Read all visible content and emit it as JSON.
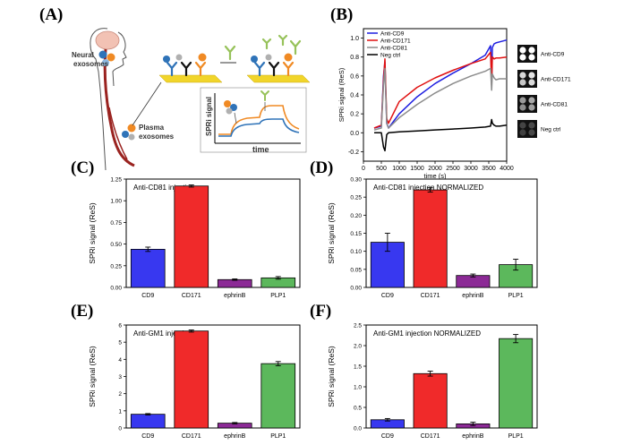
{
  "panels": {
    "a": {
      "letter": "(A)"
    },
    "b": {
      "letter": "(B)"
    },
    "c": {
      "letter": "(C)"
    },
    "d": {
      "letter": "(D)"
    },
    "e": {
      "letter": "(E)"
    },
    "f": {
      "letter": "(F)"
    }
  },
  "schematic": {
    "neural_label": "Neural\nexosomes",
    "plasma_label": "Plasma\nexosomes",
    "inset_ylabel": "SPRi signal",
    "inset_xlabel": "time",
    "colors": {
      "orange": "#f08a24",
      "blue": "#2f73b8",
      "yellow": "#f1d52a",
      "green": "#97c25a",
      "artery": "#9a2320"
    }
  },
  "spots": [
    "Anti-CD9",
    "Anti-CD171",
    "Anti-CD81",
    "Neg ctrl"
  ],
  "chart_data": [
    {
      "id": "B",
      "type": "line",
      "title": "",
      "xlabel": "time (s)",
      "ylabel": "SPRi signal (ReS)",
      "xlim": [
        0,
        4000
      ],
      "ylim": [
        -0.3,
        1.1
      ],
      "xticks": [
        0,
        500,
        1000,
        1500,
        2000,
        2500,
        3000,
        3500,
        4000
      ],
      "yticks": [
        -0.2,
        0.0,
        0.2,
        0.4,
        0.6,
        0.8,
        1.0
      ],
      "legend": "top-left",
      "series": [
        {
          "name": "Anti-CD9",
          "color": "#1f1fe0",
          "x": [
            300,
            500,
            560,
            600,
            650,
            700,
            1000,
            1500,
            2000,
            2500,
            3000,
            3400,
            3550,
            3580,
            3600,
            3650,
            3700,
            3800,
            4000
          ],
          "y": [
            0.05,
            0.07,
            0.6,
            0.75,
            0.1,
            0.05,
            0.2,
            0.38,
            0.52,
            0.63,
            0.73,
            0.82,
            0.92,
            0.55,
            0.9,
            0.94,
            0.95,
            0.96,
            0.98
          ]
        },
        {
          "name": "Anti-CD171",
          "color": "#e01010",
          "x": [
            300,
            500,
            560,
            600,
            650,
            700,
            1000,
            1500,
            2000,
            2500,
            3000,
            3400,
            3550,
            3580,
            3600,
            3650,
            3700,
            3800,
            4000
          ],
          "y": [
            0.05,
            0.08,
            0.55,
            0.78,
            0.15,
            0.1,
            0.33,
            0.48,
            0.58,
            0.66,
            0.73,
            0.78,
            0.85,
            0.5,
            0.8,
            0.78,
            0.79,
            0.79,
            0.8
          ]
        },
        {
          "name": "Anti-CD81",
          "color": "#8c8c8c",
          "x": [
            300,
            500,
            560,
            600,
            650,
            700,
            1000,
            1500,
            2000,
            2500,
            3000,
            3400,
            3550,
            3580,
            3600,
            3650,
            3700,
            3800,
            4000
          ],
          "y": [
            0.03,
            0.05,
            0.5,
            0.68,
            0.1,
            0.05,
            0.16,
            0.3,
            0.42,
            0.52,
            0.6,
            0.65,
            0.68,
            0.45,
            0.62,
            0.58,
            0.56,
            0.57,
            0.57
          ]
        },
        {
          "name": "Neg ctrl",
          "color": "#000000",
          "x": [
            300,
            500,
            560,
            600,
            650,
            700,
            1000,
            1500,
            2000,
            2500,
            3000,
            3400,
            3550,
            3580,
            3600,
            3650,
            3700,
            3800,
            4000
          ],
          "y": [
            0.0,
            0.0,
            -0.15,
            -0.19,
            -0.02,
            0.0,
            0.01,
            0.02,
            0.03,
            0.04,
            0.05,
            0.06,
            0.07,
            0.14,
            0.1,
            0.08,
            0.07,
            0.07,
            0.08
          ]
        }
      ]
    },
    {
      "id": "C",
      "type": "bar",
      "title": "Anti-CD81 injection",
      "ylabel": "SPRi signal (ReS)",
      "xlabel": "",
      "categories": [
        "CD9",
        "CD171",
        "ephrinB",
        "PLP1"
      ],
      "values": [
        0.44,
        1.17,
        0.09,
        0.11
      ],
      "errors": [
        0.025,
        0.012,
        0.008,
        0.015
      ],
      "colors": [
        "#3838f0",
        "#f02a2a",
        "#8c2a96",
        "#5cb85c"
      ],
      "ylim": [
        0,
        1.25
      ],
      "yticks": [
        0,
        0.25,
        0.5,
        0.75,
        1.0,
        1.25
      ],
      "ytick_labels": [
        "0.00",
        "0.25",
        "0.50",
        "0.75",
        "1.00",
        "1.25"
      ]
    },
    {
      "id": "D",
      "type": "bar",
      "title": "Anti-CD81 injection NORMALIZED",
      "ylabel": "SPRi signal (ReS)",
      "xlabel": "",
      "categories": [
        "CD9",
        "CD171",
        "ephrinB",
        "PLP1"
      ],
      "values": [
        0.125,
        0.27,
        0.033,
        0.063
      ],
      "errors": [
        0.025,
        0.006,
        0.004,
        0.015
      ],
      "colors": [
        "#3838f0",
        "#f02a2a",
        "#8c2a96",
        "#5cb85c"
      ],
      "ylim": [
        0,
        0.3
      ],
      "yticks": [
        0,
        0.05,
        0.1,
        0.15,
        0.2,
        0.25,
        0.3
      ],
      "ytick_labels": [
        "0.00",
        "0.05",
        "0.10",
        "0.15",
        "0.20",
        "0.25",
        "0.30"
      ]
    },
    {
      "id": "E",
      "type": "bar",
      "title": "Anti-GM1 injection",
      "ylabel": "SPRi signal (ReS)",
      "xlabel": "",
      "categories": [
        "CD9",
        "CD171",
        "ephrinB",
        "PLP1"
      ],
      "values": [
        0.8,
        5.65,
        0.28,
        3.75
      ],
      "errors": [
        0.04,
        0.06,
        0.04,
        0.12
      ],
      "colors": [
        "#3838f0",
        "#f02a2a",
        "#8c2a96",
        "#5cb85c"
      ],
      "ylim": [
        0,
        6
      ],
      "yticks": [
        0,
        1,
        2,
        3,
        4,
        5,
        6
      ],
      "ytick_labels": [
        "0",
        "1",
        "2",
        "3",
        "4",
        "5",
        "6"
      ]
    },
    {
      "id": "F",
      "type": "bar",
      "title": "Anti-GM1 injection NORMALIZED",
      "ylabel": "SPRi signal (ReS)",
      "xlabel": "",
      "categories": [
        "CD9",
        "CD171",
        "ephrinB",
        "PLP1"
      ],
      "values": [
        0.2,
        1.32,
        0.1,
        2.17
      ],
      "errors": [
        0.03,
        0.06,
        0.04,
        0.1
      ],
      "colors": [
        "#3838f0",
        "#f02a2a",
        "#8c2a96",
        "#5cb85c"
      ],
      "ylim": [
        0,
        2.5
      ],
      "yticks": [
        0,
        0.5,
        1.0,
        1.5,
        2.0,
        2.5
      ],
      "ytick_labels": [
        "0.0",
        "0.5",
        "1.0",
        "1.5",
        "2.0",
        "2.5"
      ]
    }
  ]
}
